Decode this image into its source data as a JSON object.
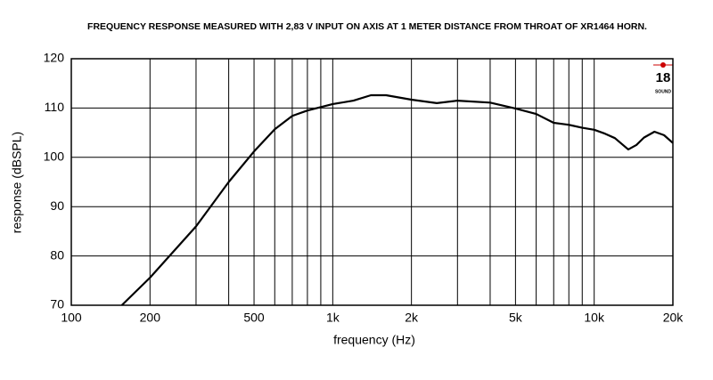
{
  "chart_data": {
    "type": "line",
    "title": "FREQUENCY RESPONSE MEASURED WITH 2,83 V INPUT ON AXIS AT 1 METER DISTANCE FROM THROAT OF XR1464 HORN.",
    "x_label": "frequency (Hz)",
    "y_label": "response (dBSPL)",
    "x": [
      156,
      200,
      300,
      400,
      500,
      600,
      700,
      800,
      1000,
      1200,
      1400,
      1600,
      2000,
      2500,
      3000,
      4000,
      5000,
      6000,
      7000,
      8000,
      9000,
      10000,
      11000,
      12000,
      13500,
      14500,
      15500,
      17000,
      18500,
      20000
    ],
    "values": [
      70,
      75.6,
      86,
      95,
      101.2,
      105.7,
      108.4,
      109.5,
      110.8,
      111.5,
      112.6,
      112.6,
      111.7,
      111,
      111.5,
      111.1,
      109.9,
      108.8,
      107,
      106.6,
      106,
      105.6,
      104.8,
      103.9,
      101.6,
      102.5,
      104,
      105.2,
      104.5,
      102.9
    ],
    "color": "#000000",
    "xscale": "log",
    "xlim": [
      100,
      20000
    ],
    "ylim": [
      70,
      120
    ],
    "xticks": [
      100,
      200,
      500,
      {
        "value": 1000,
        "label": "1k"
      },
      {
        "value": 2000,
        "label": "2k"
      },
      {
        "value": 5000,
        "label": "5k"
      },
      {
        "value": 10000,
        "label": "10k"
      },
      {
        "value": 20000,
        "label": "20k"
      }
    ],
    "xminorticks": [
      300,
      400,
      600,
      700,
      800,
      900,
      3000,
      4000,
      6000,
      7000,
      8000,
      9000
    ],
    "yticks": [
      70,
      80,
      90,
      100,
      110,
      120
    ],
    "grid": true,
    "logo": {
      "number": "18",
      "word": "SOUND"
    }
  }
}
